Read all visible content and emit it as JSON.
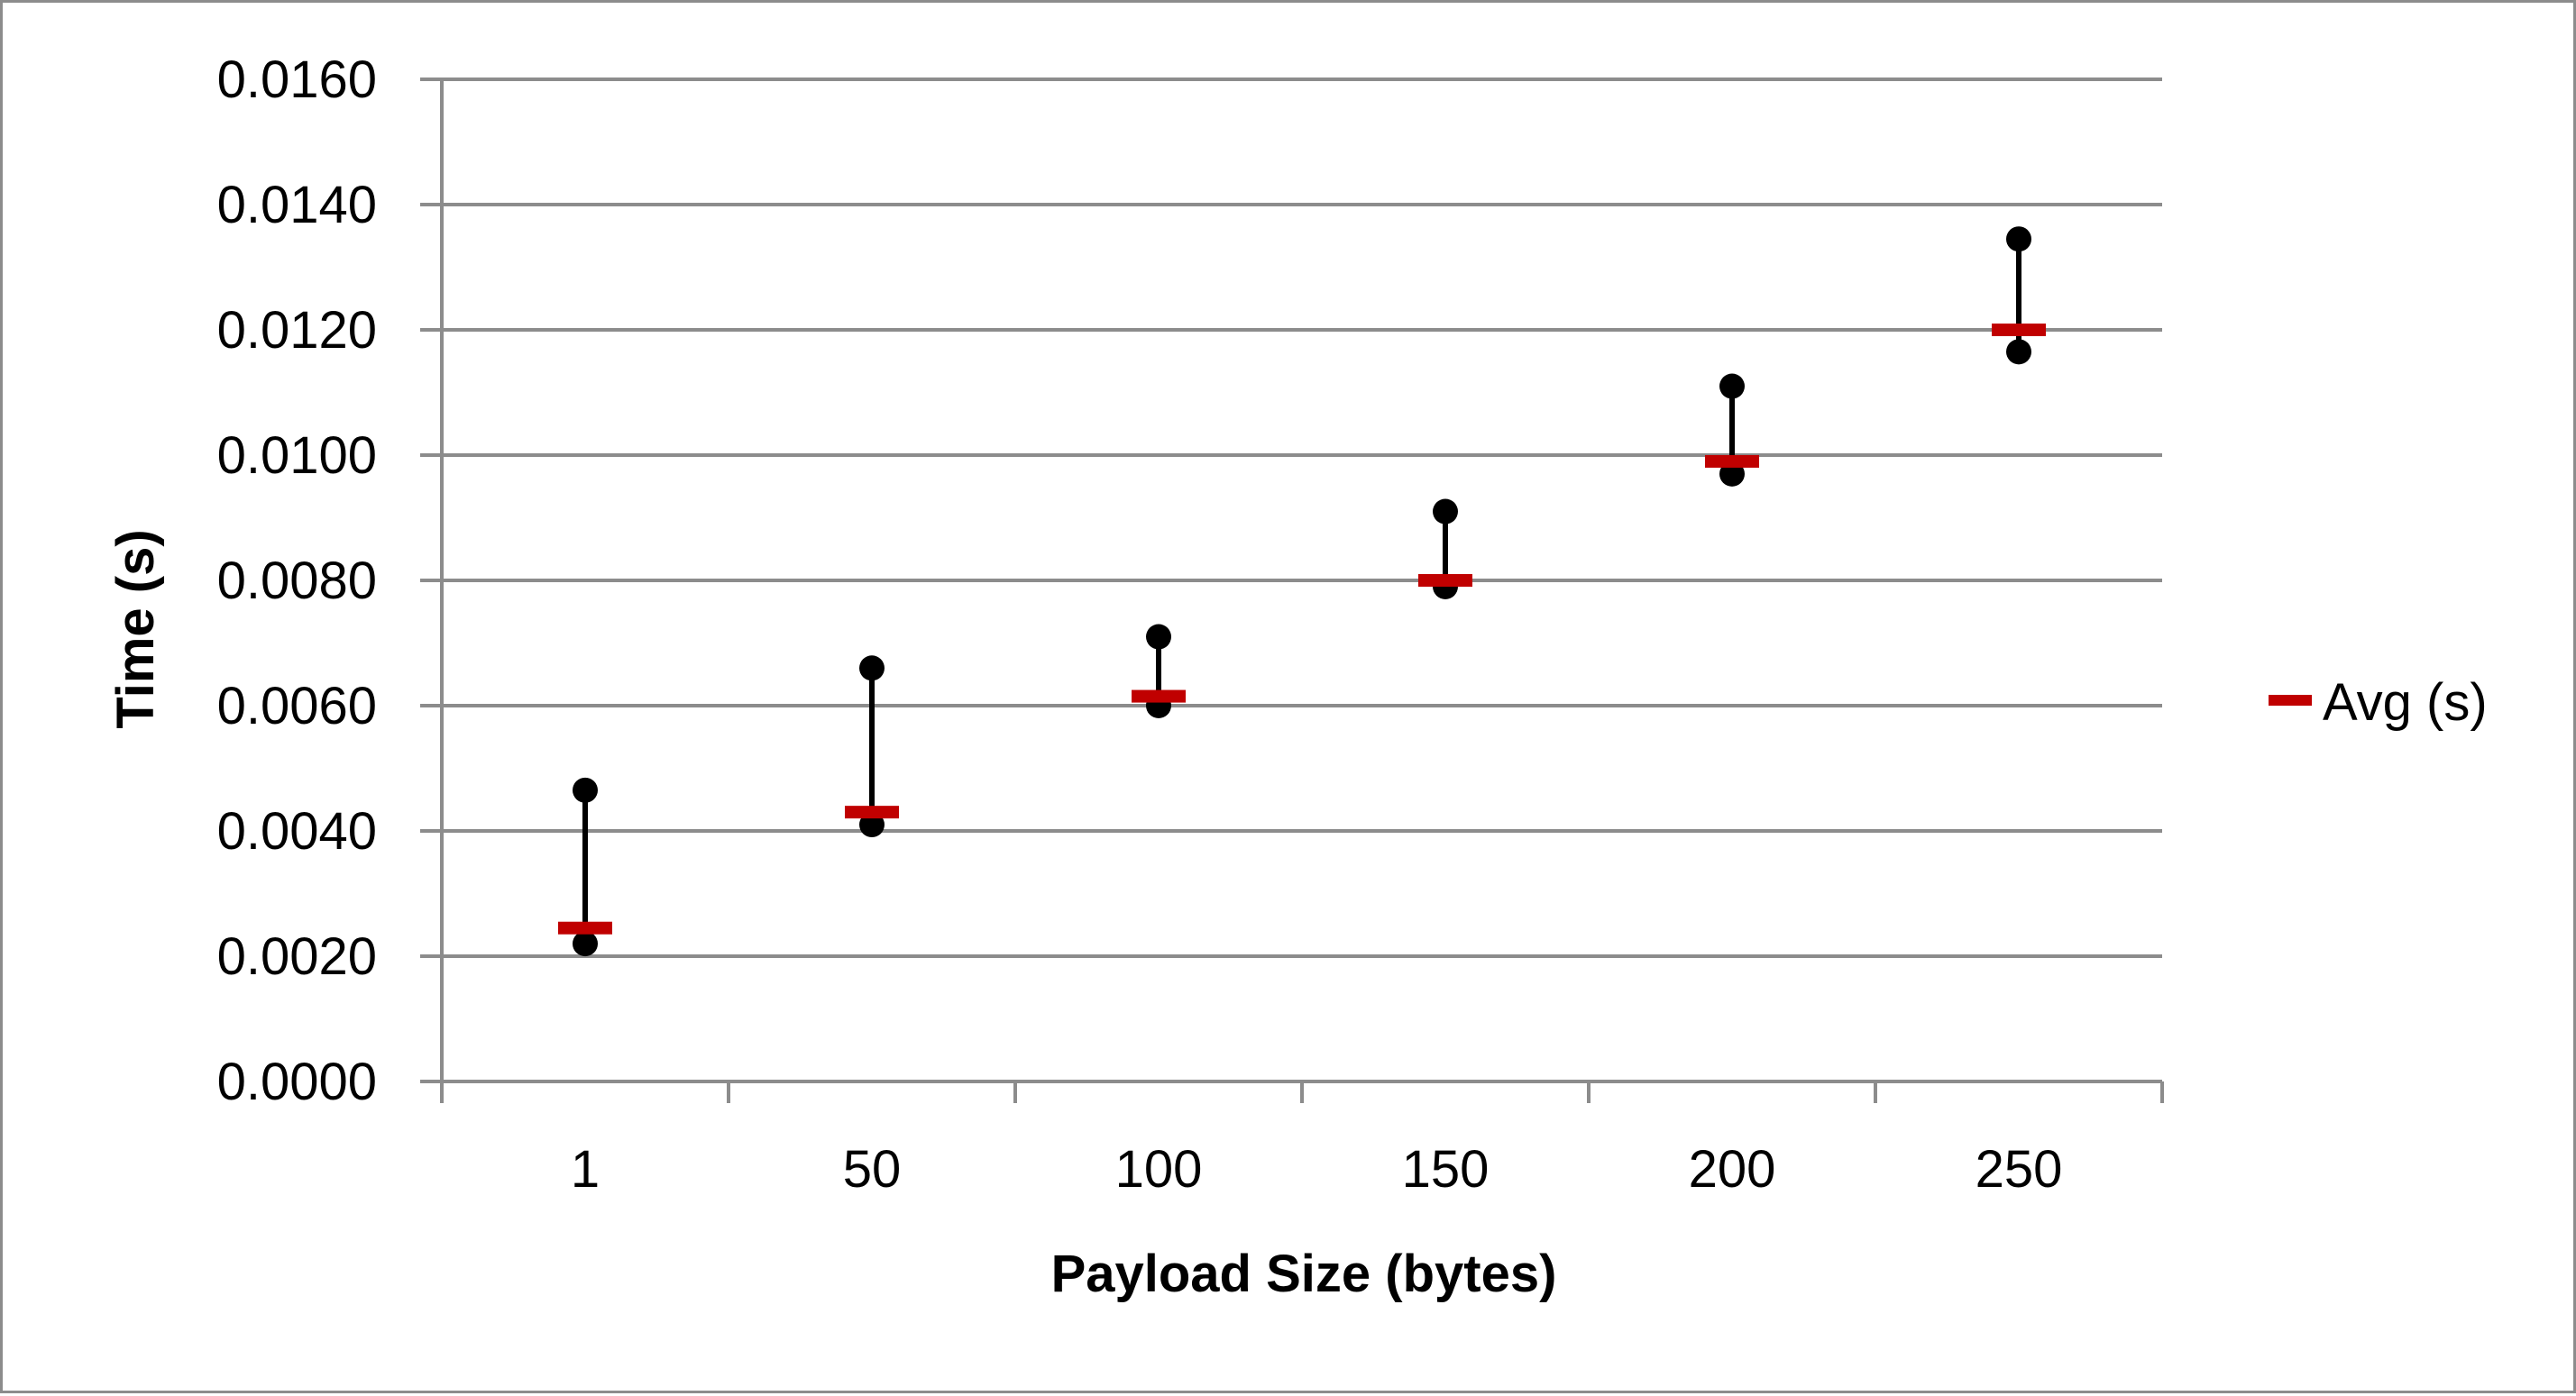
{
  "chart_data": {
    "type": "stock",
    "title": "",
    "xlabel": "Payload Size (bytes)",
    "ylabel": "Time (s)",
    "categories": [
      "1",
      "50",
      "100",
      "150",
      "200",
      "250"
    ],
    "ylim": [
      0,
      0.016
    ],
    "yticks": [
      "0.0000",
      "0.0020",
      "0.0040",
      "0.0060",
      "0.0080",
      "0.0100",
      "0.0120",
      "0.0140",
      "0.0160"
    ],
    "grid": true,
    "legend_position": "right",
    "series": [
      {
        "name": "",
        "role": "max",
        "values": [
          0.00465,
          0.0066,
          0.0071,
          0.0091,
          0.0111,
          0.01345
        ]
      },
      {
        "name": "",
        "role": "min",
        "values": [
          0.0022,
          0.0041,
          0.006,
          0.0079,
          0.0097,
          0.01165
        ]
      },
      {
        "name": "Avg (s)",
        "role": "avg",
        "values": [
          0.00245,
          0.0043,
          0.00615,
          0.008,
          0.0099,
          0.012
        ]
      }
    ],
    "colors": {
      "avg": "#c00000",
      "range": "#000000",
      "grid": "#8c8c8c"
    }
  }
}
